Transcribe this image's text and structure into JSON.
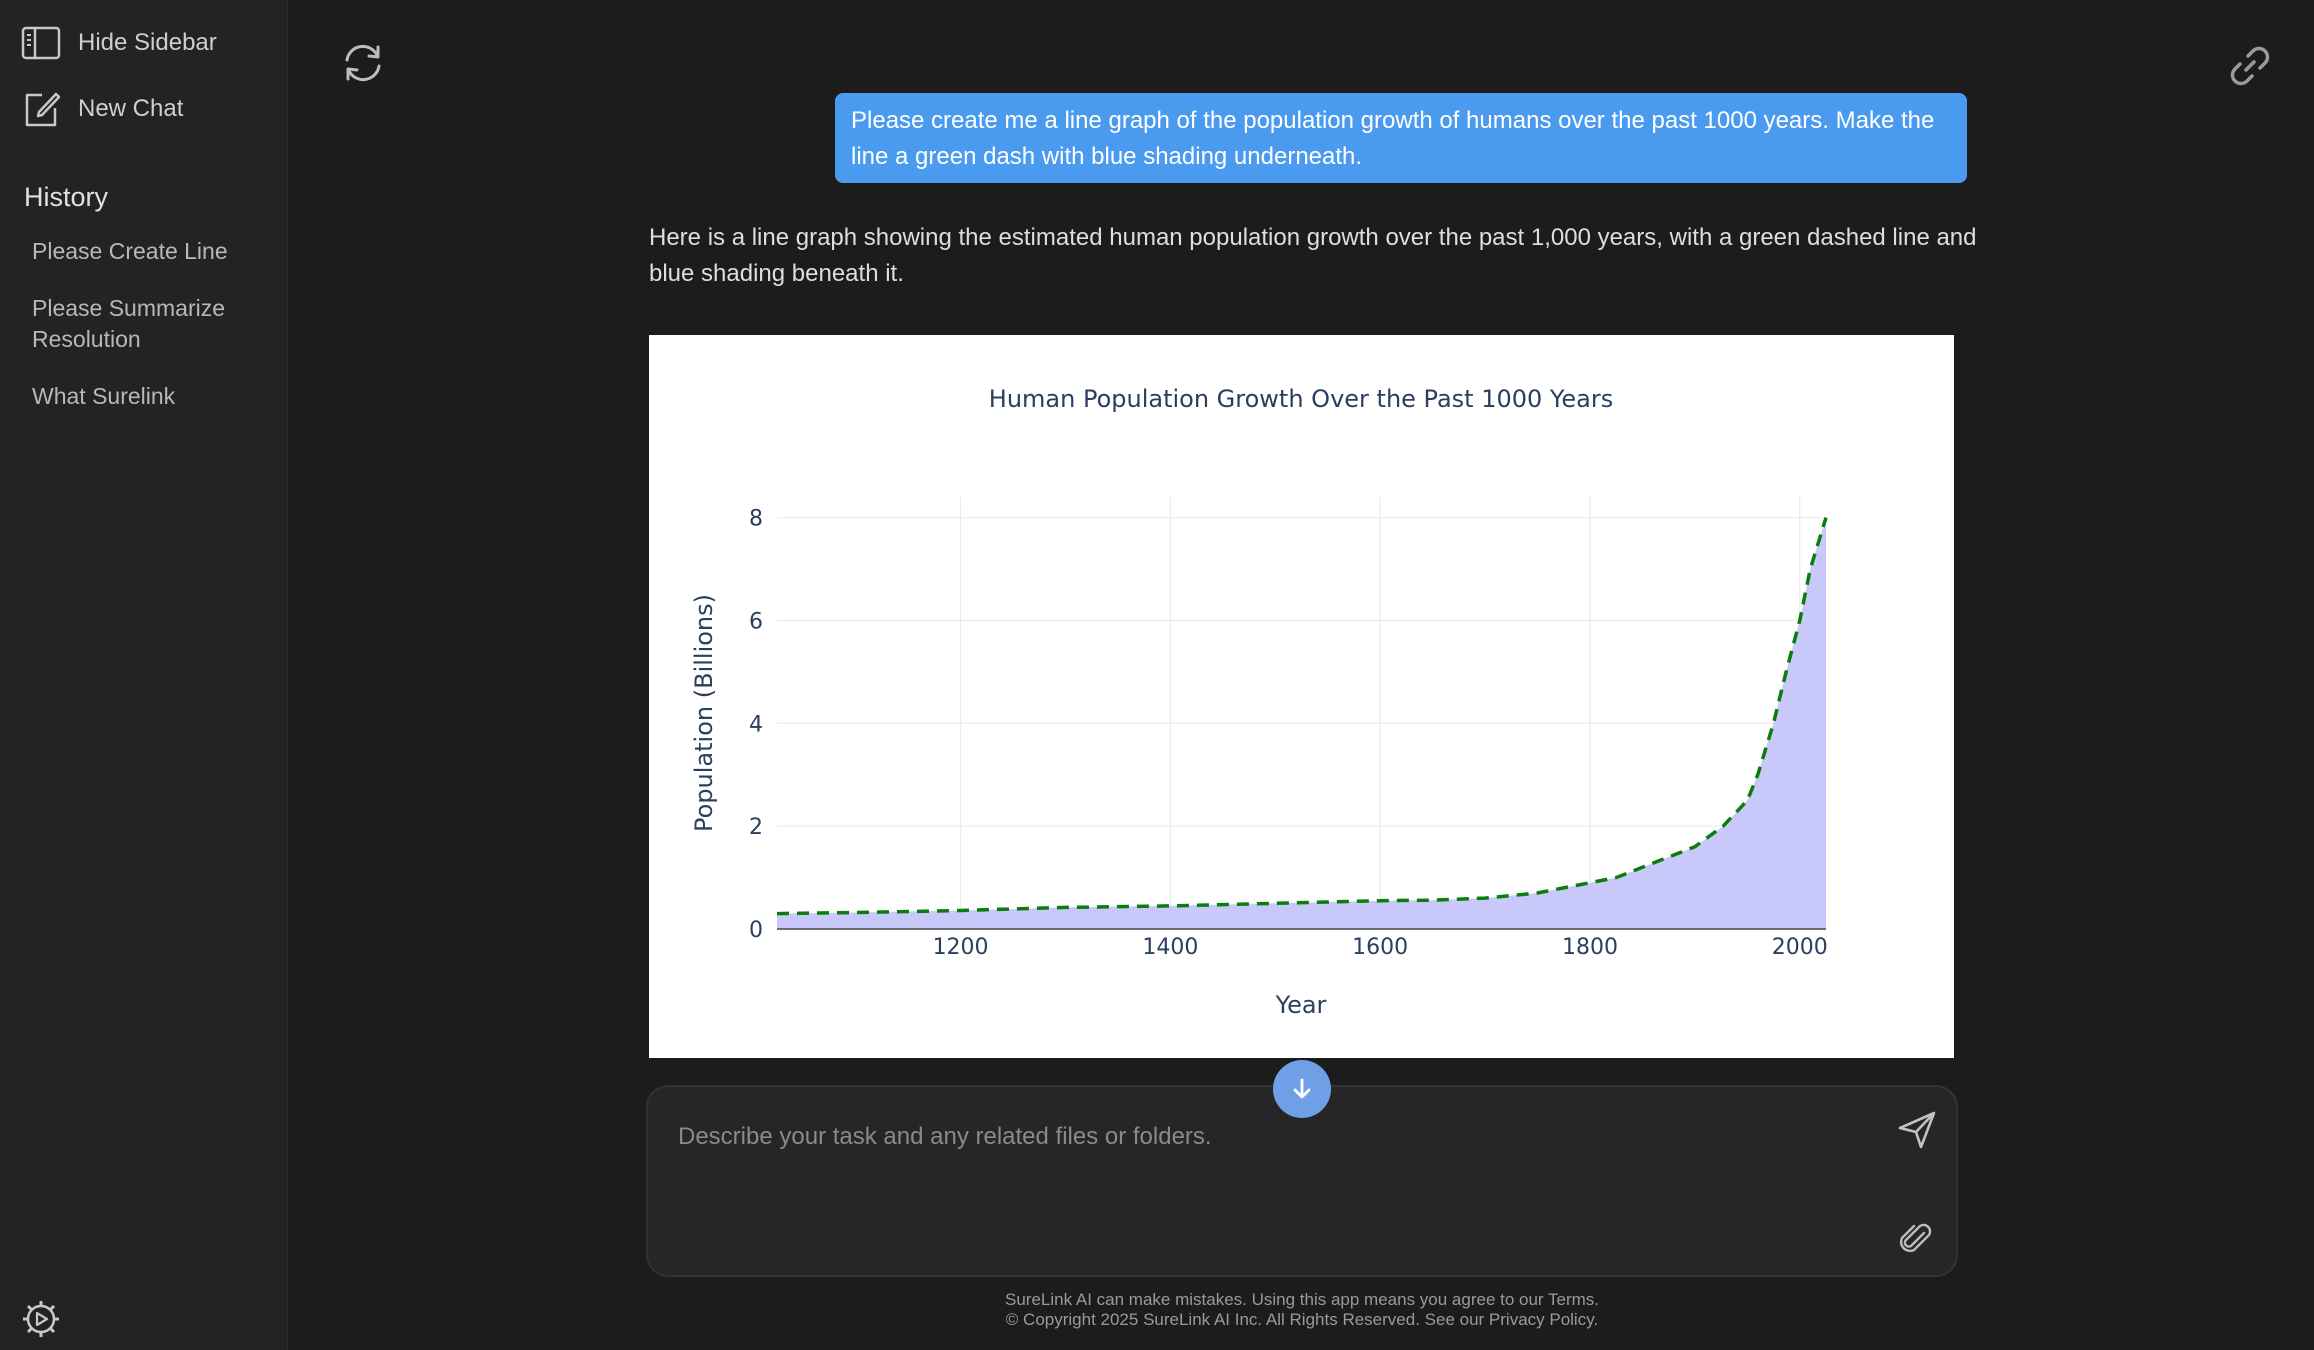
{
  "sidebar": {
    "hide_label": "Hide Sidebar",
    "new_chat_label": "New Chat",
    "history_title": "History",
    "history": [
      "Please Create Line",
      "Please Summarize Resolution",
      "What Surelink"
    ]
  },
  "conversation": {
    "user_message": "Please create me a line graph of the population growth of humans over the past 1000 years. Make the line a green dash with blue shading underneath.",
    "assistant_message": "Here is a line graph showing the estimated human population growth over the past 1,000 years, with a green dashed line and blue shading beneath it."
  },
  "composer": {
    "placeholder": "Describe your task and any related files or folders."
  },
  "footer": {
    "line1": "SureLink AI can make mistakes. Using this app means you agree to our Terms.",
    "line2": "© Copyright 2025 SureLink AI Inc. All Rights Reserved. See our Privacy Policy."
  },
  "colors": {
    "accent": "#4a9bf0",
    "line": "#0a7d0a",
    "fill": "#c8c8fa"
  },
  "chart_data": {
    "type": "area",
    "title": "Human Population Growth Over the Past 1000 Years",
    "xlabel": "Year",
    "ylabel": "Population (Billions)",
    "x": [
      1025,
      1100,
      1200,
      1300,
      1400,
      1500,
      1600,
      1650,
      1700,
      1750,
      1800,
      1825,
      1850,
      1900,
      1927,
      1950,
      1960,
      1975,
      1987,
      2000,
      2010,
      2025
    ],
    "y": [
      0.3,
      0.32,
      0.36,
      0.42,
      0.45,
      0.5,
      0.55,
      0.56,
      0.6,
      0.7,
      0.9,
      1.0,
      1.2,
      1.6,
      2.0,
      2.5,
      3.0,
      4.0,
      5.0,
      6.0,
      7.0,
      8.0
    ],
    "x_ticks": [
      1200,
      1400,
      1600,
      1800,
      2000
    ],
    "y_ticks": [
      0,
      2,
      4,
      6,
      8
    ],
    "xlim": [
      1025,
      2025
    ],
    "ylim": [
      0,
      8.4
    ],
    "grid": true,
    "legend": "none"
  }
}
